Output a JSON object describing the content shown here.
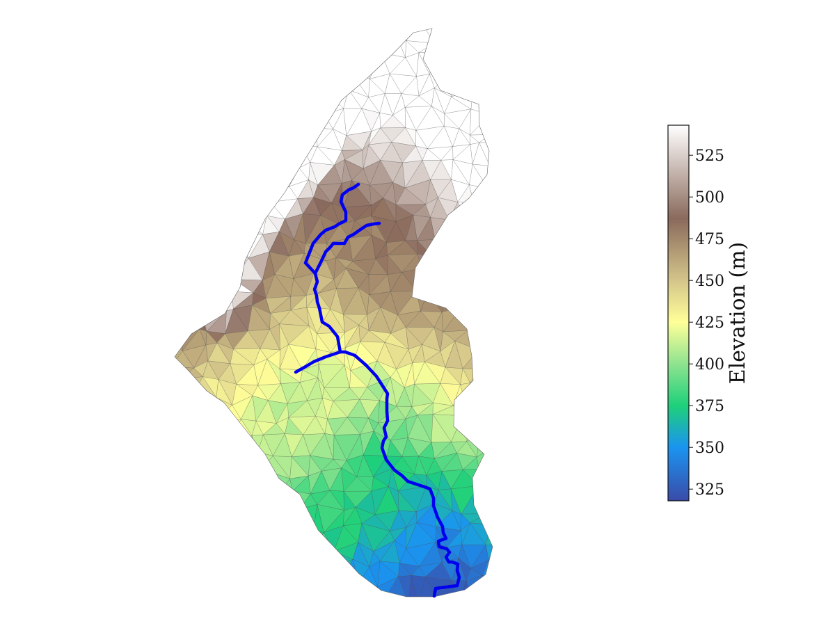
{
  "colorbar": {
    "label": "Elevation (m)",
    "min": 318,
    "max": 543,
    "ticks": [
      {
        "value": 325,
        "label": "325"
      },
      {
        "value": 350,
        "label": "350"
      },
      {
        "value": 375,
        "label": "375"
      },
      {
        "value": 400,
        "label": "400"
      },
      {
        "value": 425,
        "label": "425"
      },
      {
        "value": 450,
        "label": "450"
      },
      {
        "value": 475,
        "label": "475"
      },
      {
        "value": 500,
        "label": "500"
      },
      {
        "value": 525,
        "label": "525"
      }
    ],
    "colormap": "terrain (upper portion)",
    "stops": [
      {
        "value": 318,
        "color": "#3b4ba8"
      },
      {
        "value": 350,
        "color": "#1a94f0"
      },
      {
        "value": 375,
        "color": "#1ed07a"
      },
      {
        "value": 400,
        "color": "#8fe38f"
      },
      {
        "value": 425,
        "color": "#ffff99"
      },
      {
        "value": 450,
        "color": "#d4c58a"
      },
      {
        "value": 487,
        "color": "#8a6a5c"
      },
      {
        "value": 543,
        "color": "#ffffff"
      }
    ]
  },
  "map": {
    "river_color": "#0000ee",
    "mesh_edge_color": "#555555"
  }
}
